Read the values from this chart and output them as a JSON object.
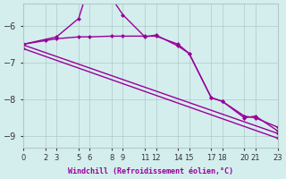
{
  "xlabel": "Windchill (Refroidissement éolien,°C)",
  "background_color": "#d4eeee",
  "line_color": "#990099",
  "grid_color": "#b0c8c8",
  "xlim": [
    0,
    23
  ],
  "ylim": [
    -9.3,
    -5.4
  ],
  "yticks": [
    -9,
    -8,
    -7,
    -6
  ],
  "xtick_positions": [
    0,
    2,
    3,
    5,
    6,
    8,
    9,
    11,
    12,
    14,
    15,
    17,
    18,
    20,
    21,
    23
  ],
  "xtick_labels": [
    "0",
    "2",
    "3",
    "5",
    "6",
    "8",
    "9",
    "11",
    "12",
    "14",
    "15",
    "17",
    "18",
    "20",
    "21",
    "23"
  ],
  "line1_x": [
    0,
    2,
    3,
    5,
    6,
    8,
    9,
    11,
    12,
    14,
    15,
    17,
    18,
    20,
    21,
    23
  ],
  "line1_y": [
    -6.5,
    -6.4,
    -6.35,
    -6.3,
    -6.3,
    -6.28,
    -6.28,
    -6.28,
    -6.28,
    -6.5,
    -6.75,
    -7.95,
    -8.05,
    -8.45,
    -8.5,
    -8.75
  ],
  "line2_x": [
    0,
    23
  ],
  "line2_y": [
    -6.52,
    -8.92
  ],
  "line3_x": [
    0,
    23
  ],
  "line3_y": [
    -6.62,
    -9.05
  ],
  "line4_x": [
    0,
    3,
    5,
    6,
    8,
    9,
    11,
    12,
    14,
    15,
    17,
    18,
    20,
    21,
    23
  ],
  "line4_y": [
    -6.5,
    -6.3,
    -5.8,
    -4.85,
    -5.25,
    -5.7,
    -6.3,
    -6.25,
    -6.55,
    -6.75,
    -7.95,
    -8.05,
    -8.5,
    -8.45,
    -8.85
  ],
  "marker": "D",
  "markersize": 2.5,
  "linewidth": 1.0
}
